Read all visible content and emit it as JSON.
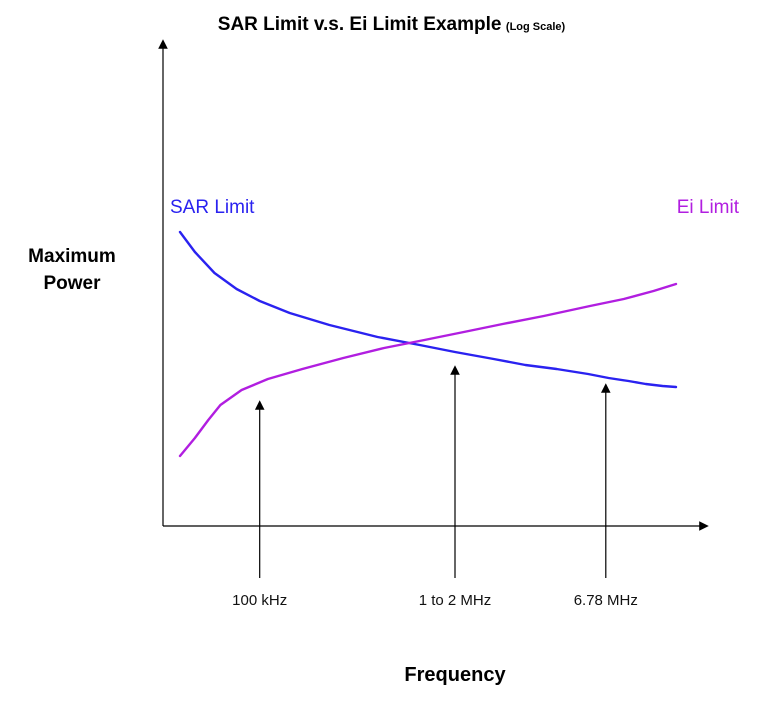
{
  "chart_data": {
    "type": "line",
    "title": "SAR Limit v.s. Ei Limit Example",
    "subtitle": "(Log Scale)",
    "xlabel": "Frequency",
    "ylabel": "Maximum Power",
    "x_scale": "log",
    "grid": false,
    "series": [
      {
        "name": "SAR Limit",
        "color": "#2a22f0",
        "points": [
          [
            0.8,
            232
          ],
          [
            0.9,
            252
          ],
          [
            1.05,
            273
          ],
          [
            1.25,
            289
          ],
          [
            1.5,
            301
          ],
          [
            1.9,
            313
          ],
          [
            2.6,
            325
          ],
          [
            3.8,
            337
          ],
          [
            5.3,
            345
          ],
          [
            7.0,
            352
          ],
          [
            9.5,
            359
          ],
          [
            12.2,
            365
          ],
          [
            15.6,
            369
          ],
          [
            20,
            374
          ],
          [
            23.5,
            378
          ],
          [
            27.5,
            381
          ],
          [
            31.5,
            384
          ],
          [
            36,
            386
          ],
          [
            40,
            387
          ]
        ]
      },
      {
        "name": "Ei Limit",
        "color": "#b11ee0",
        "points": [
          [
            0.8,
            456
          ],
          [
            0.9,
            438
          ],
          [
            1.0,
            420
          ],
          [
            1.1,
            405
          ],
          [
            1.3,
            390
          ],
          [
            1.6,
            379
          ],
          [
            2.1,
            369
          ],
          [
            2.9,
            358
          ],
          [
            4.0,
            348
          ],
          [
            5.5,
            340
          ],
          [
            7.5,
            332
          ],
          [
            10.2,
            324
          ],
          [
            14.1,
            316
          ],
          [
            20.3,
            306
          ],
          [
            26.5,
            299
          ],
          [
            33.5,
            291
          ],
          [
            40,
            284
          ]
        ]
      }
    ],
    "annotations": [
      {
        "label": "100 kHz",
        "x": 1.5,
        "arrow_tip_y": 405
      },
      {
        "label": "1 to 2 MHz",
        "x": 7.0,
        "arrow_tip_y": 370
      },
      {
        "label": "6.78 MHz",
        "x": 23.0,
        "arrow_tip_y": 388
      }
    ]
  }
}
